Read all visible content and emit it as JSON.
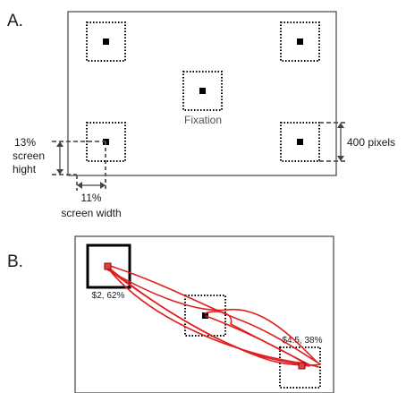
{
  "panel_a": {
    "letter": "A.",
    "fixation_label": "Fixation",
    "size_label": "400 pixels",
    "height_pct": "13%",
    "height_text_1": "screen",
    "height_text_2": "hight",
    "width_pct": "11%",
    "width_text": "screen width"
  },
  "panel_b": {
    "letter": "B.",
    "left_option_label": "$2, 62%",
    "right_option_label": "$4.5, 38%"
  },
  "colors": {
    "trajectory": "#e02020",
    "marker": "#000000",
    "dotted_box": "#000000",
    "dashed_guides": "#555555"
  }
}
